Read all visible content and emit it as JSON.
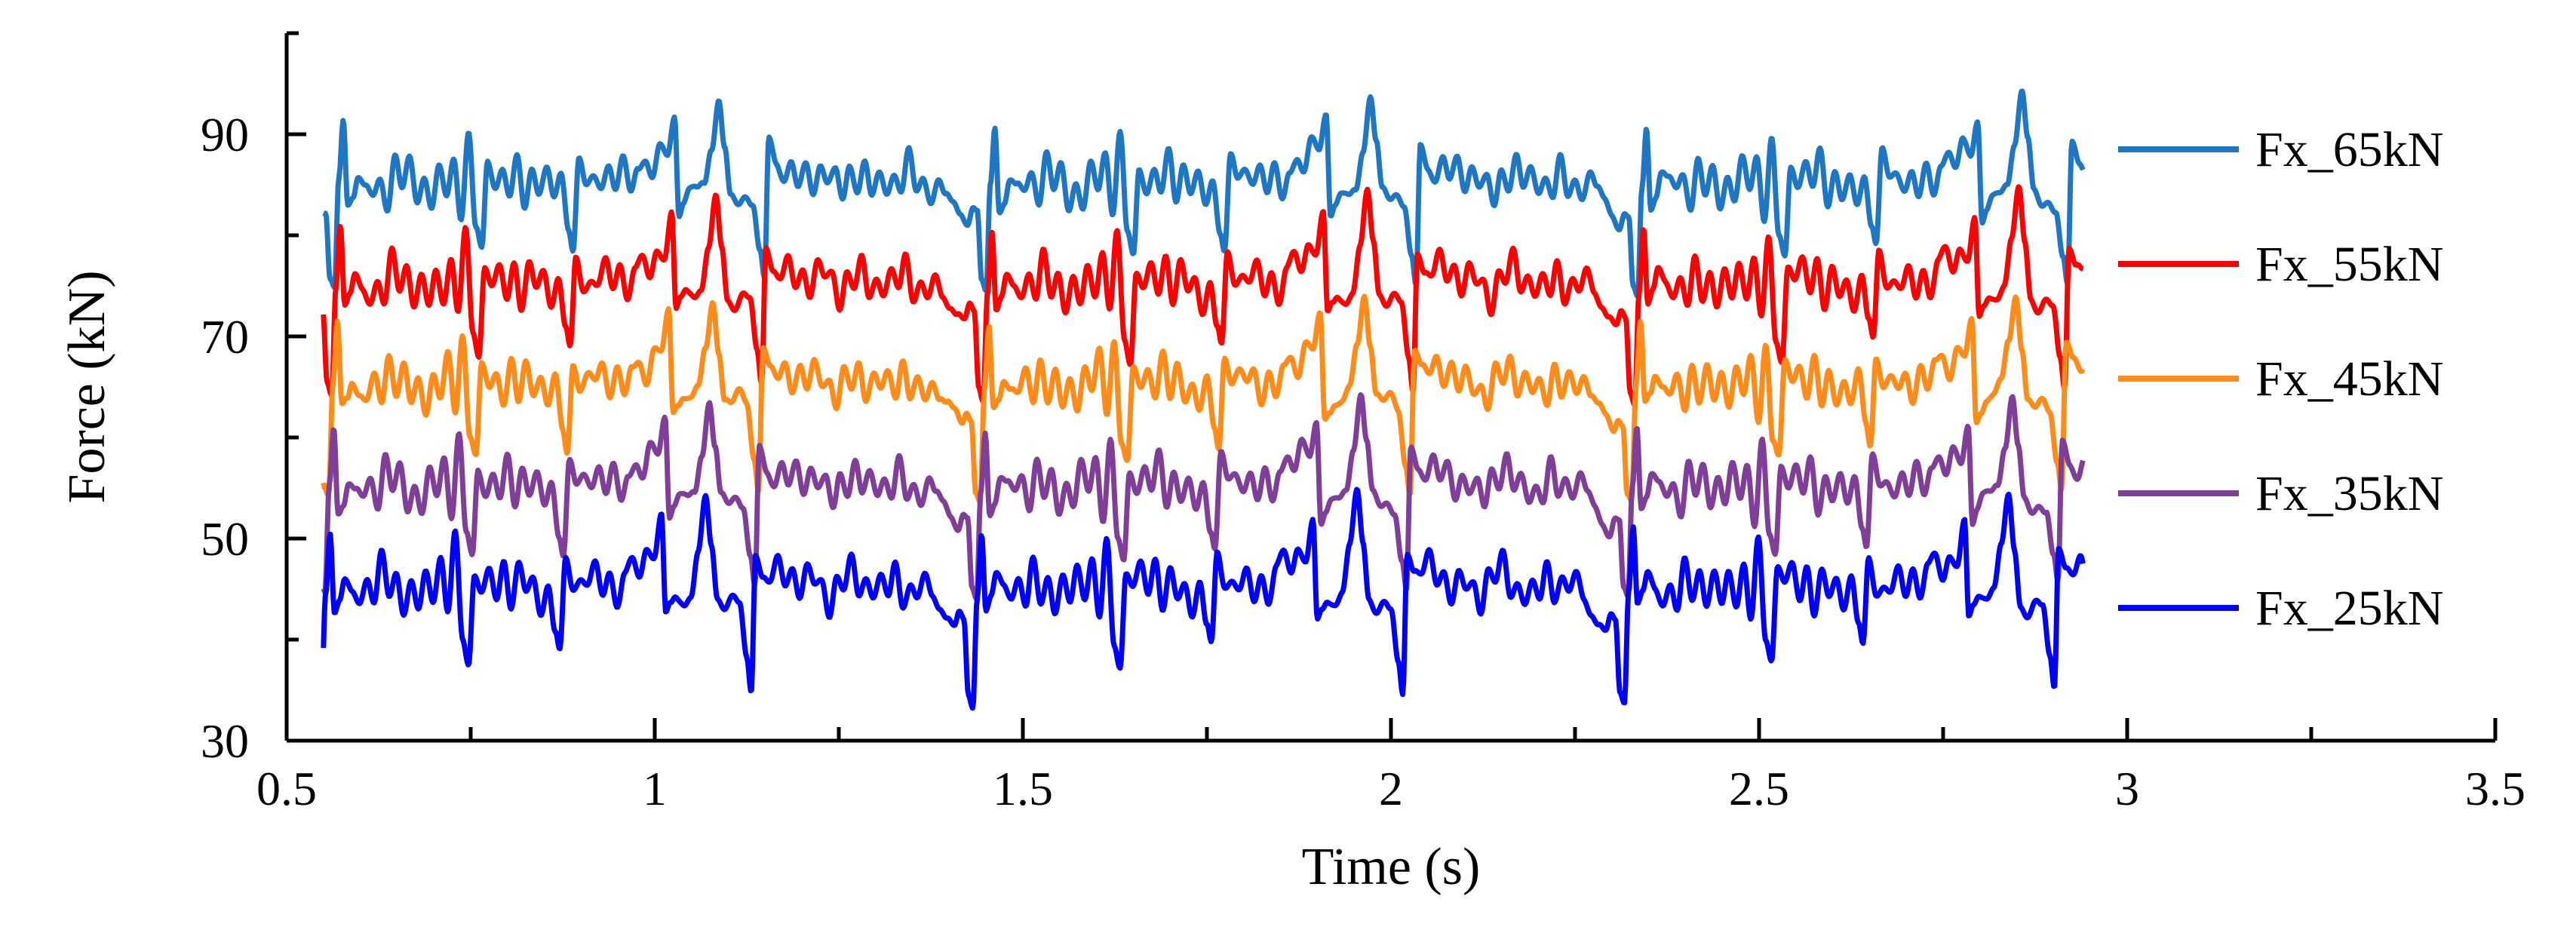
{
  "chart_data": {
    "type": "line",
    "title": "",
    "xlabel": "Time (s)",
    "ylabel": "Force (kN)",
    "xlim": [
      0.5,
      3.5
    ],
    "ylim": [
      30,
      100
    ],
    "x_ticks": [
      "0.5",
      "1",
      "1.5",
      "2",
      "2.5",
      "3",
      "3.5"
    ],
    "y_ticks": [
      "30",
      "50",
      "70",
      "90"
    ],
    "grid": false,
    "legend_position": "right",
    "x_range": [
      0.55,
      2.94
    ],
    "series": [
      {
        "name": "Fx_65kN",
        "color": "#1f77c4",
        "mean": 85
      },
      {
        "name": "Fx_55kN",
        "color": "#ff0000",
        "mean": 75
      },
      {
        "name": "Fx_45kN",
        "color": "#ff8c1a",
        "mean": 65
      },
      {
        "name": "Fx_35kN",
        "color": "#7f3f98",
        "mean": 55
      },
      {
        "name": "Fx_25kN",
        "color": "#0000ff",
        "mean": 45
      }
    ],
    "pattern_period_s": 0.885,
    "pattern": {
      "base": [
        [
          0.0,
          -2.5
        ],
        [
          0.006,
          -3
        ],
        [
          0.012,
          -10
        ],
        [
          0.018,
          -11
        ],
        [
          0.024,
          0
        ],
        [
          0.03,
          6
        ],
        [
          0.036,
          -2
        ],
        [
          0.043,
          -1
        ],
        [
          0.05,
          1
        ],
        [
          0.06,
          0
        ],
        [
          0.07,
          -1
        ],
        [
          0.08,
          1
        ],
        [
          0.09,
          -2
        ],
        [
          0.1,
          3
        ],
        [
          0.11,
          -1
        ],
        [
          0.12,
          2
        ],
        [
          0.13,
          -2
        ],
        [
          0.14,
          1
        ],
        [
          0.15,
          -2
        ],
        [
          0.16,
          2
        ],
        [
          0.17,
          -1
        ],
        [
          0.18,
          3
        ],
        [
          0.19,
          -3
        ],
        [
          0.2,
          5
        ],
        [
          0.21,
          -5
        ],
        [
          0.218,
          -7
        ],
        [
          0.226,
          2
        ],
        [
          0.236,
          0
        ],
        [
          0.246,
          2
        ],
        [
          0.256,
          -1
        ],
        [
          0.266,
          3
        ],
        [
          0.276,
          -2
        ],
        [
          0.286,
          2
        ],
        [
          0.296,
          -1
        ],
        [
          0.306,
          1
        ],
        [
          0.316,
          -2
        ],
        [
          0.326,
          1
        ],
        [
          0.336,
          -4
        ],
        [
          0.342,
          -6
        ],
        [
          0.35,
          3
        ],
        [
          0.36,
          0
        ],
        [
          0.37,
          1
        ],
        [
          0.38,
          0
        ],
        [
          0.39,
          2
        ],
        [
          0.4,
          -1
        ],
        [
          0.41,
          2
        ],
        [
          0.42,
          -1
        ],
        [
          0.43,
          2
        ],
        [
          0.44,
          3
        ],
        [
          0.45,
          1
        ],
        [
          0.46,
          4
        ],
        [
          0.47,
          3
        ],
        [
          0.48,
          7
        ],
        [
          0.486,
          -3
        ],
        [
          0.492,
          -2
        ],
        [
          0.5,
          -1
        ],
        [
          0.51,
          -1
        ],
        [
          0.52,
          0
        ],
        [
          0.53,
          4
        ],
        [
          0.54,
          9
        ],
        [
          0.548,
          4
        ],
        [
          0.556,
          -1
        ],
        [
          0.566,
          -2
        ],
        [
          0.576,
          -1
        ],
        [
          0.586,
          -2
        ],
        [
          0.596,
          -7
        ],
        [
          0.602,
          -10
        ],
        [
          0.608,
          4
        ],
        [
          0.618,
          2
        ],
        [
          0.628,
          1
        ],
        [
          0.638,
          3
        ],
        [
          0.648,
          0
        ],
        [
          0.658,
          2
        ],
        [
          0.668,
          -1
        ],
        [
          0.678,
          2
        ],
        [
          0.688,
          0
        ],
        [
          0.698,
          1
        ],
        [
          0.708,
          -2
        ],
        [
          0.718,
          2
        ],
        [
          0.728,
          0
        ],
        [
          0.738,
          3
        ],
        [
          0.748,
          -1
        ],
        [
          0.758,
          1
        ],
        [
          0.768,
          -1
        ],
        [
          0.778,
          1
        ],
        [
          0.788,
          -1
        ],
        [
          0.798,
          3
        ],
        [
          0.808,
          -1
        ],
        [
          0.818,
          1
        ],
        [
          0.828,
          -1
        ],
        [
          0.838,
          1
        ],
        [
          0.848,
          -1
        ],
        [
          0.858,
          -2
        ],
        [
          0.868,
          -3
        ],
        [
          0.878,
          -4
        ],
        [
          0.885,
          -2.5
        ]
      ],
      "noise_offsets_s": [
        0.003,
        0.007,
        0.011,
        0.016,
        0.021
      ]
    }
  }
}
